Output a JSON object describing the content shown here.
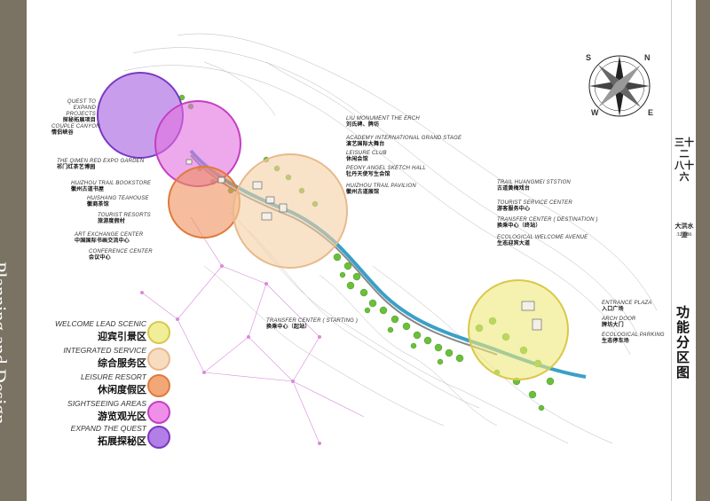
{
  "sidebar_title": "Planning and Design",
  "right_panel": {
    "top_glyphs": "三十二  八十六",
    "brand": "大洪水道",
    "code": "32 · 86",
    "section_title": "功能分区图"
  },
  "labels": {
    "quest_projects": {
      "en": "QUEST TO EXPAND PROJECTS",
      "cn": "探秘拓展项目"
    },
    "couple_canyon": {
      "en": "COUPLE CANYON",
      "cn": "情侣峡谷"
    },
    "qimen": {
      "en": "THE QIMEN RED EXPO GARDEN",
      "cn": "祁门红茶艺博园"
    },
    "huizhou_bookstore": {
      "en": "HUIZHOU TRAIL BOOKSTORE",
      "cn": "徽州古道书屋"
    },
    "teahouse": {
      "en": "HUISHANG TEAHOUSE",
      "cn": "徽商茶馆"
    },
    "resorts": {
      "en": "TOURIST RESORTS",
      "cn": "旅游度假村"
    },
    "art_center": {
      "en": "ART EXCHANGE CENTER",
      "cn": "中国国际书画交流中心"
    },
    "conference": {
      "en": "CONFERENCE CENTER",
      "cn": "会议中心"
    },
    "liu_monument": {
      "en": "LIU MONUMENT THE ERCH",
      "cn": "刘氏碑、牌坊"
    },
    "academy": {
      "en": "ACADEMY INTERNATIONAL GRAND STAGE",
      "cn": "演艺国际大舞台"
    },
    "leisure_club": {
      "en": "LEISURE CLUB",
      "cn": "休闲会馆"
    },
    "peony": {
      "en": "PEONY ANGEL SKETCH HALL",
      "cn": "牡丹天使写生会馆"
    },
    "trail_pavilion": {
      "en": "HUIZHOU TRAIL PAVILION",
      "cn": "徽州古道展馆"
    },
    "trail_station": {
      "en": "TRAIL HUANGMEI STSTION",
      "cn": "古道黄梅戏台"
    },
    "service_center": {
      "en": "TOURIST SERVICE CENTER",
      "cn": "游客服务中心"
    },
    "transfer_dest": {
      "en": "TRANSFER CENTER ( DESTINATION )",
      "cn": "换乘中心（终站）"
    },
    "eco_avenue": {
      "en": "ECOLOGICAL WELCOME AVENUE",
      "cn": "生态迎宾大道"
    },
    "transfer_start": {
      "en": "TRANSFER CENTER ( STARTING )",
      "cn": "换乘中心（起站）"
    },
    "entrance_plaza": {
      "en": "ENTRANCE PLAZA",
      "cn": "入口广场"
    },
    "arch_door": {
      "en": "ARCH DOOR",
      "cn": "牌坊大门"
    },
    "eco_parking": {
      "en": "ECOLOGICAL PARKING",
      "cn": "生态停车场"
    }
  },
  "legend": [
    {
      "en": "WELCOME LEAD SCENIC",
      "cn": "迎宾引景区",
      "fill": "#f1ee9a",
      "stroke": "#d9c84a"
    },
    {
      "en": "INTEGRATED SERVICE",
      "cn": "综合服务区",
      "fill": "#f7dcc0",
      "stroke": "#e8b98c"
    },
    {
      "en": "LEISURE RESORT",
      "cn": "休闲度假区",
      "fill": "#f2a777",
      "stroke": "#e07a3c"
    },
    {
      "en": "SIGHTSEEING AREAS",
      "cn": "游览观光区",
      "fill": "#f08fe8",
      "stroke": "#c43ec4"
    },
    {
      "en": "EXPAND THE QUEST",
      "cn": "拓展探秘区",
      "fill": "#b27fe6",
      "stroke": "#7a38c4"
    }
  ],
  "compass": {
    "letters": [
      "S",
      "N",
      "W",
      "E"
    ]
  },
  "colors": {
    "sidebar": "#7a7263",
    "river": "#3aa0c8",
    "trees": "#6bbf3a",
    "connector": "#d98ad9"
  }
}
